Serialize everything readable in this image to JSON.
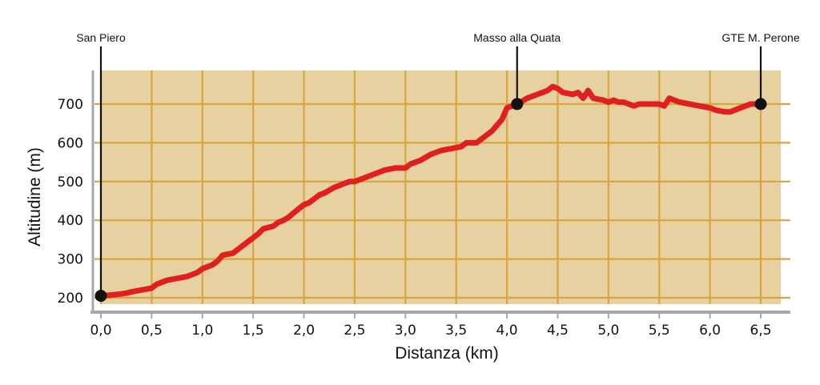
{
  "chart_data": {
    "type": "line",
    "xlabel": "Distanza (km)",
    "ylabel": "Altitudine (m)",
    "xlim": [
      0,
      6.75
    ],
    "ylim": [
      180,
      790
    ],
    "grid": true,
    "x_ticks": [
      0,
      0.5,
      1.0,
      1.5,
      2.0,
      2.5,
      3.0,
      3.5,
      4.0,
      4.5,
      5.0,
      5.5,
      6.0,
      6.5
    ],
    "x_tick_labels": [
      "0,0",
      "0,5",
      "1,0",
      "1,5",
      "2,0",
      "2,5",
      "3,0",
      "3,5",
      "4,0",
      "4,5",
      "5,0",
      "5,5",
      "6,0",
      "6,5"
    ],
    "y_ticks": [
      200,
      300,
      400,
      500,
      600,
      700
    ],
    "y_tick_labels": [
      "200",
      "300",
      "400",
      "500",
      "600",
      "700"
    ],
    "colors": {
      "plot_background": "#e8d1a0",
      "grid": "#d6a63f",
      "line": "#e01f1f",
      "axis": "#a8a8a8",
      "marker": "#111111"
    },
    "series": [
      {
        "x": [
          0.0,
          0.1,
          0.2,
          0.25,
          0.3,
          0.4,
          0.5,
          0.55,
          0.65,
          0.75,
          0.85,
          0.95,
          1.0,
          1.1,
          1.15,
          1.2,
          1.3,
          1.4,
          1.45,
          1.5,
          1.55,
          1.6,
          1.7,
          1.75,
          1.8,
          1.85,
          1.95,
          2.0,
          2.05,
          2.1,
          2.15,
          2.2,
          2.3,
          2.4,
          2.45,
          2.5,
          2.6,
          2.7,
          2.8,
          2.9,
          3.0,
          3.05,
          3.15,
          3.25,
          3.35,
          3.45,
          3.55,
          3.6,
          3.7,
          3.75,
          3.85,
          3.95,
          4.0,
          4.1,
          4.2,
          4.3,
          4.4,
          4.45,
          4.5,
          4.55,
          4.65,
          4.7,
          4.75,
          4.8,
          4.85,
          4.95,
          5.0,
          5.05,
          5.1,
          5.15,
          5.2,
          5.25,
          5.3,
          5.4,
          5.5,
          5.55,
          5.6,
          5.65,
          5.7,
          5.8,
          5.9,
          6.0,
          6.05,
          6.1,
          6.15,
          6.2,
          6.3,
          6.4,
          6.5
        ],
        "y": [
          205,
          207,
          210,
          212,
          215,
          220,
          225,
          235,
          245,
          250,
          255,
          265,
          275,
          285,
          295,
          310,
          315,
          335,
          345,
          355,
          365,
          378,
          385,
          395,
          400,
          408,
          430,
          440,
          445,
          455,
          465,
          470,
          485,
          495,
          500,
          500,
          510,
          520,
          530,
          535,
          535,
          545,
          555,
          570,
          580,
          585,
          590,
          600,
          600,
          610,
          630,
          660,
          690,
          700,
          715,
          725,
          735,
          745,
          740,
          730,
          725,
          730,
          715,
          735,
          715,
          710,
          705,
          710,
          705,
          705,
          700,
          695,
          700,
          700,
          700,
          695,
          715,
          710,
          705,
          700,
          695,
          690,
          685,
          682,
          680,
          680,
          690,
          700,
          700
        ]
      }
    ],
    "waypoints": [
      {
        "label": "San Piero",
        "x": 0.0,
        "y": 205
      },
      {
        "label": "Masso alla Quata",
        "x": 4.1,
        "y": 700
      },
      {
        "label": "GTE M. Perone",
        "x": 6.5,
        "y": 700
      }
    ]
  }
}
